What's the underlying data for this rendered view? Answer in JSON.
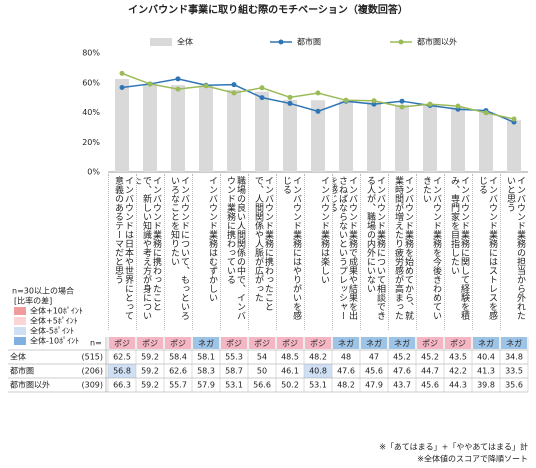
{
  "chart_data": {
    "type": "bar",
    "title": "インバウンド事業に取り組む際のモチベーション（複数回答）",
    "categories": [
      "インバウンドは日本や世界にとって意義のあるテーマだと思う",
      "インバウンド業務に携わったことで、新しい知識や考え方が身についた",
      "インバウンドについて、もっといろいろなことを知りたい",
      "インバウンド業務はむずかしい",
      "職場の良い人間関係の中で、インバウンド業務に携わっている",
      "インバウンド業務に携わったことで、人間関係や人脈が広がった",
      "インバウンド業務にはやりがいを感じる",
      "インバウンド業務は楽しい",
      "インバウンド業務で成果や結果を出さねばならないというプレッシャーを感じる",
      "インバウンド業務について相談できる人が、職場の内外にいない",
      "インバウンド業務を始めてから、就業時間が増えたり疲労感が高まった",
      "インバウンド業務を今後きわめていきたい",
      "インバウンド業務に関して経験を積み、専門家を目指したい",
      "インバウンド業務にはストレスを感じる",
      "インバウンド業務の担当から外れたいと思う"
    ],
    "tags": [
      {
        "label": "ポジ",
        "color": "#f4b6c2"
      },
      {
        "label": "ポジ",
        "color": "#f4b6c2"
      },
      {
        "label": "ポジ",
        "color": "#f4b6c2"
      },
      {
        "label": "ネガ",
        "color": "#9dc3e6"
      },
      {
        "label": "ポジ",
        "color": "#f4b6c2"
      },
      {
        "label": "ポジ",
        "color": "#f4b6c2"
      },
      {
        "label": "ポジ",
        "color": "#f4b6c2"
      },
      {
        "label": "ポジ",
        "color": "#f4b6c2"
      },
      {
        "label": "ネガ",
        "color": "#9dc3e6"
      },
      {
        "label": "ネガ",
        "color": "#9dc3e6"
      },
      {
        "label": "ネガ",
        "color": "#9dc3e6"
      },
      {
        "label": "ポジ",
        "color": "#f4b6c2"
      },
      {
        "label": "ポジ",
        "color": "#f4b6c2"
      },
      {
        "label": "ネガ",
        "color": "#9dc3e6"
      },
      {
        "label": "ネガ",
        "color": "#9dc3e6"
      }
    ],
    "n_header": "n=",
    "series": [
      {
        "name": "全体",
        "type": "bar",
        "color": "#d9d9d9",
        "n_label": "(515)",
        "values": [
          62.5,
          59.2,
          58.4,
          58.1,
          55.3,
          54.0,
          48.5,
          48.2,
          48.0,
          47.0,
          45.2,
          45.2,
          43.5,
          40.4,
          34.8
        ],
        "cell_colors": [
          null,
          null,
          null,
          null,
          null,
          null,
          null,
          null,
          null,
          null,
          null,
          null,
          null,
          null,
          null
        ]
      },
      {
        "name": "都市圏",
        "type": "line",
        "color": "#2e75b6",
        "n_label": "(206)",
        "values": [
          56.8,
          59.2,
          62.6,
          58.3,
          58.7,
          50.0,
          46.1,
          40.8,
          47.6,
          45.6,
          47.6,
          44.7,
          42.2,
          41.3,
          33.5
        ],
        "cell_colors": [
          "#cfe0f5",
          null,
          null,
          null,
          null,
          null,
          null,
          "#cfe0f5",
          null,
          null,
          null,
          null,
          null,
          null,
          null
        ]
      },
      {
        "name": "都市圏以外",
        "type": "line",
        "color": "#9bbb59",
        "n_label": "(309)",
        "values": [
          66.3,
          59.2,
          55.7,
          57.9,
          53.1,
          56.6,
          50.2,
          53.1,
          48.2,
          47.9,
          43.7,
          45.6,
          44.3,
          39.8,
          35.6
        ],
        "cell_colors": [
          null,
          null,
          null,
          null,
          null,
          null,
          null,
          null,
          null,
          null,
          null,
          null,
          null,
          null,
          null
        ]
      }
    ],
    "ylim": [
      0,
      80
    ],
    "yticks": [
      {
        "value": 0,
        "label": "0%"
      },
      {
        "value": 20,
        "label": "20%"
      },
      {
        "value": 40,
        "label": "40%"
      },
      {
        "value": 60,
        "label": "60%"
      },
      {
        "value": 80,
        "label": "80%"
      }
    ],
    "grid": false,
    "legend": "top",
    "diff_legend_title": "n=30以上の場合",
    "diff_legend_subtitle": "[比率の差]",
    "diff_legend": [
      {
        "label": "全体+10ﾎﾟｲﾝﾄ",
        "color": "#f19c9c"
      },
      {
        "label": "全体+5ﾎﾟｲﾝﾄ",
        "color": "#fbd5d5"
      },
      {
        "label": "全体-5ﾎﾟｲﾝﾄ",
        "color": "#cfe0f5"
      },
      {
        "label": "全体-10ﾎﾟｲﾝﾄ",
        "color": "#7fb0e0"
      }
    ],
    "footnotes": [
      "※「あてはまる」+「ややあてはまる」計",
      "※全体値のスコアで降順ソート"
    ]
  }
}
